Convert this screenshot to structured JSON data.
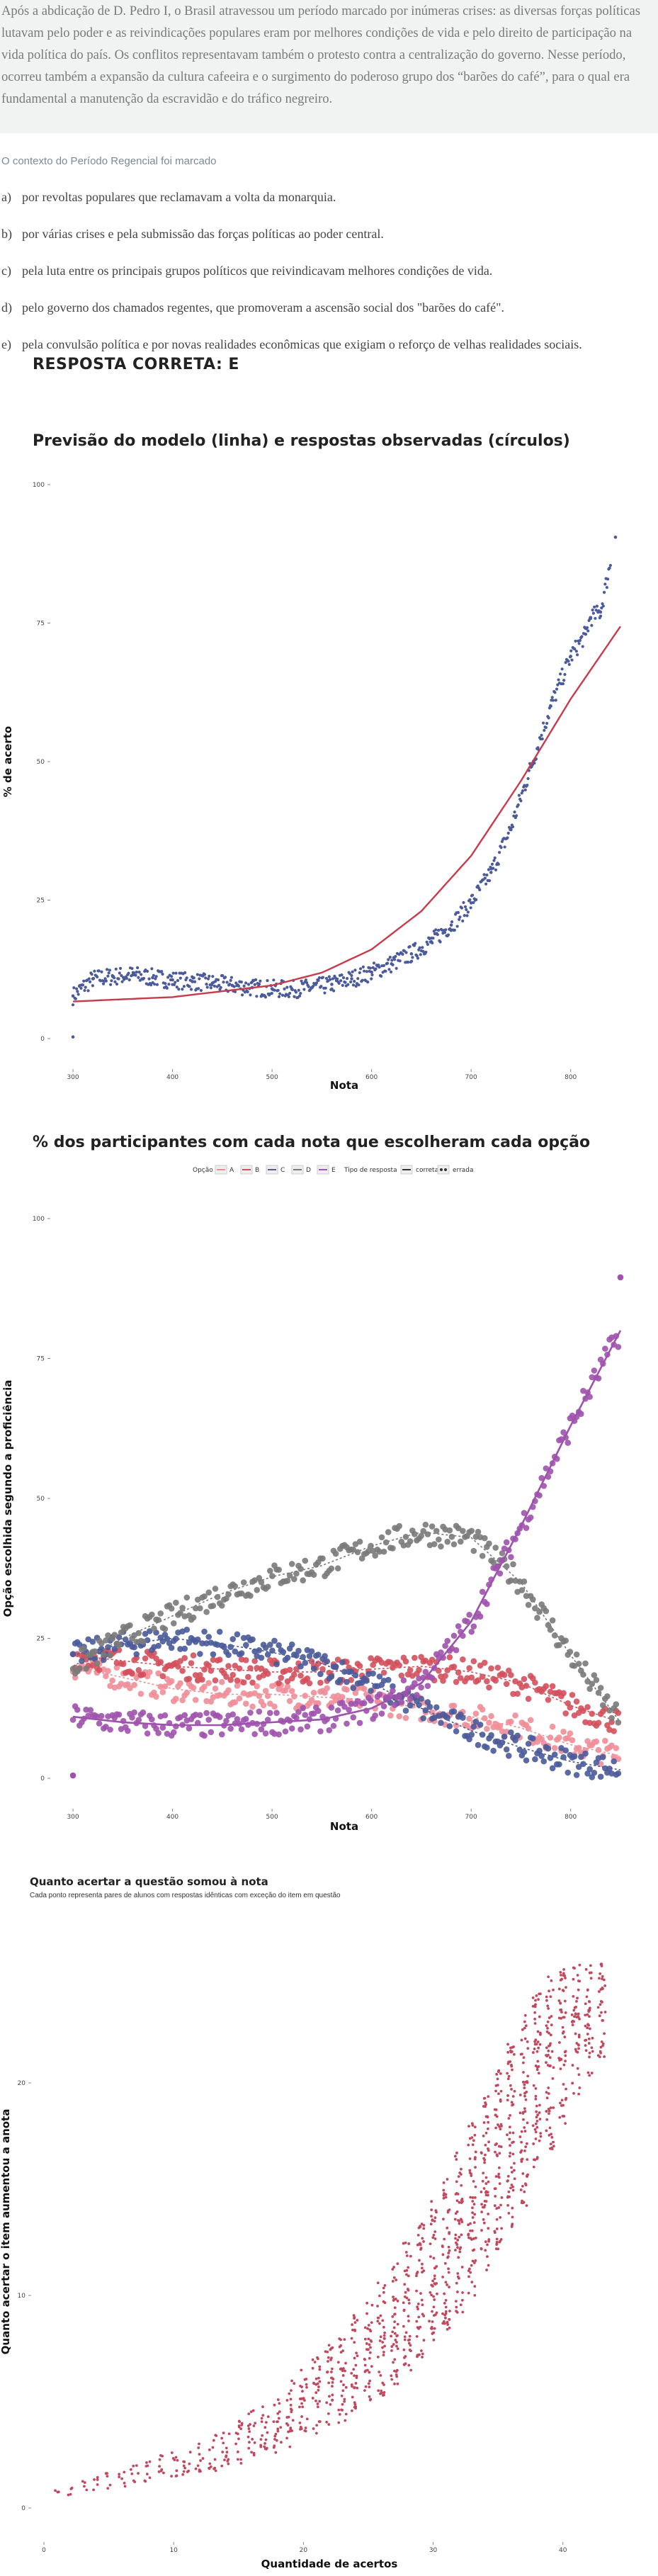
{
  "passage": "Após a abdicação de D. Pedro I, o Brasil atravessou um período marcado por inúmeras crises: as diversas forças políticas lutavam pelo poder e as reivindicações populares eram por melhores condições de vida e pelo direito de participação na vida política do país. Os conflitos representavam também o protesto contra a centralização do governo. Nesse período, ocorreu também a expansão da cultura cafeeira e o surgimento do poderoso grupo dos “barões do café”, para o qual era fundamental a manutenção da escravidão e do tráfico negreiro.",
  "question": {
    "stem": "O contexto do Período Regencial foi marcado",
    "alternatives": [
      {
        "letter": "a)",
        "text": "por revoltas populares que reclamavam a volta da monarquia."
      },
      {
        "letter": "b)",
        "text": "por várias crises e pela submissão das forças políticas ao poder central."
      },
      {
        "letter": "c)",
        "text": "pela luta entre os principais grupos políticos que reivindicavam melhores condições de vida."
      },
      {
        "letter": "d)",
        "text": "pelo governo dos chamados regentes, que promoveram a ascensão social dos \"barões do café\"."
      },
      {
        "letter": "e)",
        "text": "pela convulsão política e por novas realidades econômicas que exigiam o reforço de velhas realidades sociais."
      }
    ],
    "answer": "RESPOSTA CORRETA: E"
  },
  "colors": {
    "model_line": "#c63c4c",
    "observed": "#4a5a9a",
    "A": "#f08e98",
    "B": "#d3505c",
    "C": "#4a5a9a",
    "D": "#7a7a7a",
    "E": "#9e52ad",
    "gain": "#c2485e"
  },
  "chart_data": [
    {
      "type": "scatter",
      "title": "Previsão do modelo (linha) e respostas observadas (círculos)",
      "xlabel": "Nota",
      "ylabel": "% de acerto",
      "xlim": [
        290,
        855
      ],
      "ylim": [
        0,
        100
      ],
      "xticks": [
        300,
        400,
        500,
        600,
        700,
        800
      ],
      "yticks": [
        0,
        25,
        50,
        75,
        100
      ],
      "grid": false,
      "series": [
        {
          "kind": "line",
          "color": "#c63c4c",
          "x": [
            300,
            400,
            500,
            550,
            600,
            650,
            700,
            750,
            800,
            850
          ],
          "y": [
            6.7,
            7.5,
            9.6,
            11.9,
            16.1,
            23.0,
            33.0,
            46.5,
            61.3,
            74.4
          ]
        },
        {
          "kind": "points",
          "color": "#4a5a9a",
          "x": [
            300,
            320,
            340,
            360,
            380,
            400,
            420,
            440,
            460,
            480,
            500,
            520,
            540,
            560,
            580,
            600,
            620,
            640,
            660,
            680,
            700,
            720,
            740,
            760,
            780,
            800,
            815,
            820,
            830,
            845
          ],
          "y": [
            7.7,
            10.8,
            11.2,
            11.5,
            11.0,
            10.6,
            10.3,
            10.0,
            9.6,
            9.2,
            9.0,
            8.9,
            9.2,
            9.8,
            10.8,
            12.0,
            13.5,
            15.3,
            17.5,
            20.5,
            24.5,
            30.0,
            38.0,
            49.0,
            60.0,
            69.0,
            73.0,
            76.0,
            77.0,
            90.5
          ]
        }
      ]
    },
    {
      "type": "scatter",
      "title": "% dos participantes com cada nota que escolheram cada opção",
      "xlabel": "Nota",
      "ylabel": "Opção escolhida segundo a proficiência",
      "xlim": [
        290,
        855
      ],
      "ylim": [
        0,
        100
      ],
      "xticks": [
        300,
        400,
        500,
        600,
        700,
        800
      ],
      "yticks": [
        0,
        25,
        50,
        75,
        100
      ],
      "grid": false,
      "legend": {
        "option_title": "Opção",
        "options": [
          "A",
          "B",
          "C",
          "D",
          "E"
        ],
        "type_title": "Tipo de resposta",
        "types": [
          "correta",
          "errada"
        ]
      },
      "series": [
        {
          "name": "A",
          "color": "#f08e98",
          "x": [
            300,
            350,
            400,
            450,
            500,
            550,
            600,
            650,
            700,
            750,
            800,
            850
          ],
          "y": [
            20,
            18,
            16,
            15,
            15,
            14.5,
            14,
            12.5,
            11,
            9,
            6,
            4
          ]
        },
        {
          "name": "B",
          "color": "#d3505c",
          "x": [
            300,
            350,
            400,
            450,
            500,
            550,
            600,
            650,
            700,
            750,
            800,
            850
          ],
          "y": [
            22,
            21,
            20,
            19.5,
            19,
            19,
            19.5,
            20,
            19,
            17,
            13,
            10
          ]
        },
        {
          "name": "C",
          "color": "#4a5a9a",
          "x": [
            300,
            350,
            400,
            450,
            500,
            550,
            600,
            650,
            700,
            750,
            800,
            850
          ],
          "y": [
            22,
            24,
            25,
            24,
            22.5,
            20.5,
            17,
            12.5,
            8.5,
            5.5,
            3,
            1.5
          ]
        },
        {
          "name": "D",
          "color": "#7a7a7a",
          "x": [
            300,
            350,
            400,
            450,
            500,
            550,
            600,
            650,
            700,
            750,
            800,
            850
          ],
          "y": [
            20,
            25,
            29,
            33,
            36,
            38,
            41.5,
            44,
            43,
            35,
            22,
            10
          ]
        },
        {
          "name": "E",
          "color": "#9e52ad",
          "x": [
            300,
            350,
            400,
            450,
            500,
            550,
            600,
            650,
            700,
            750,
            800,
            850
          ],
          "y": [
            11,
            10,
            9.5,
            9.5,
            10,
            10.5,
            12.5,
            17,
            28,
            45,
            63,
            80
          ]
        }
      ]
    },
    {
      "type": "scatter",
      "title": "Quanto acertar a questão somou à nota",
      "subtitle": "Cada ponto representa pares de alunos com respostas idênticas com exceção do item em questão",
      "xlabel": "Quantidade de acertos",
      "ylabel": "Quanto acertar o item aumentou a anota",
      "xlim": [
        0,
        44
      ],
      "ylim": [
        -1,
        27
      ],
      "xticks": [
        0,
        10,
        20,
        30,
        40
      ],
      "yticks": [
        0,
        10,
        20
      ],
      "grid": false,
      "color": "#c2485e",
      "x": [
        1,
        2,
        3,
        4,
        5,
        6,
        7,
        8,
        9,
        10,
        11,
        12,
        13,
        14,
        15,
        16,
        17,
        18,
        19,
        20,
        21,
        22,
        23,
        24,
        25,
        26,
        27,
        28,
        29,
        30,
        31,
        32,
        33,
        34,
        35,
        36,
        37,
        38,
        39,
        40,
        41,
        42,
        43
      ],
      "y_min": [
        0.5,
        0.6,
        0.7,
        0.8,
        0.9,
        1.0,
        1.1,
        1.2,
        1.3,
        1.4,
        1.5,
        1.6,
        1.7,
        1.8,
        2.0,
        2.2,
        2.4,
        2.6,
        2.8,
        3.0,
        3.3,
        3.6,
        4.0,
        4.4,
        4.8,
        5.3,
        5.8,
        6.4,
        7.0,
        7.7,
        8.4,
        9.2,
        10.0,
        11.0,
        12.0,
        13.0,
        14.2,
        15.5,
        16.8,
        18.0,
        19.2,
        20.2,
        21.0
      ],
      "y_max": [
        0.9,
        1.1,
        1.3,
        1.5,
        1.7,
        1.9,
        2.1,
        2.3,
        2.5,
        2.7,
        2.9,
        3.2,
        3.5,
        3.8,
        4.2,
        4.6,
        5.0,
        5.5,
        6.0,
        6.5,
        7.1,
        7.7,
        8.4,
        9.1,
        9.9,
        10.7,
        11.6,
        12.5,
        13.5,
        14.6,
        15.7,
        16.9,
        18.1,
        19.4,
        20.7,
        22.0,
        23.2,
        24.2,
        25.0,
        25.5,
        25.6,
        25.6,
        25.6
      ]
    }
  ]
}
